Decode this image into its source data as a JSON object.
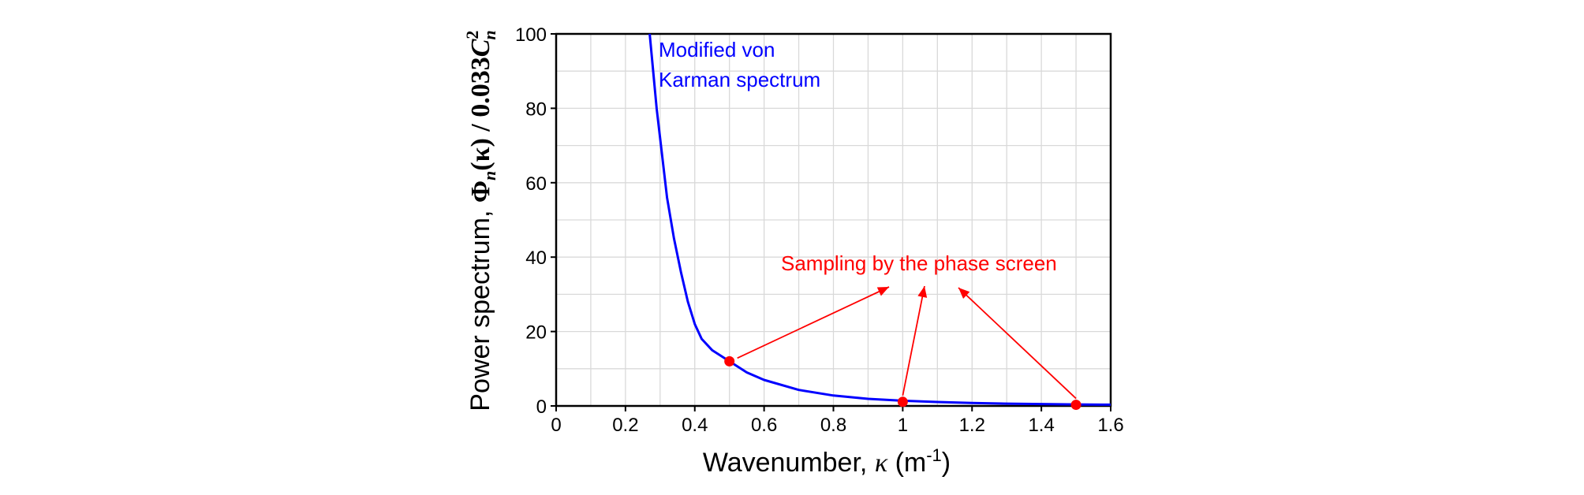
{
  "chart_data": {
    "type": "line",
    "xlabel": {
      "text": "Wavenumber, ",
      "symbol": "κ",
      "unit_open": " (m",
      "unit_sup": "-1",
      "unit_close": ")"
    },
    "ylabel": {
      "text": "Power spectrum, ",
      "symbol": "Φ",
      "sub1": "n",
      "mid": "(κ) / 0.033",
      "c": "C",
      "c_sup": "2",
      "c_sub": "n"
    },
    "xlim": [
      0,
      1.6
    ],
    "ylim": [
      0,
      100
    ],
    "x_ticks": [
      "0",
      "0.2",
      "0.4",
      "0.6",
      "0.8",
      "1",
      "1.2",
      "1.4",
      "1.6"
    ],
    "y_ticks": [
      "0",
      "20",
      "40",
      "60",
      "80",
      "100"
    ],
    "grid": true,
    "series": [
      {
        "label_lines": [
          "Modified von",
          "Karman spectrum"
        ],
        "color": "#0000ff",
        "x": [
          0.27,
          0.28,
          0.29,
          0.3,
          0.32,
          0.34,
          0.36,
          0.38,
          0.4,
          0.42,
          0.45,
          0.5,
          0.55,
          0.6,
          0.7,
          0.8,
          0.9,
          1.0,
          1.1,
          1.2,
          1.3,
          1.4,
          1.5,
          1.6
        ],
        "y": [
          100,
          90,
          80,
          72,
          56,
          45,
          36,
          28,
          22,
          18,
          15,
          12,
          9,
          7,
          4.3,
          2.8,
          1.9,
          1.4,
          1.05,
          0.8,
          0.62,
          0.5,
          0.4,
          0.33
        ]
      }
    ],
    "samples": {
      "color": "#ff0000",
      "x": [
        0.5,
        1.0,
        1.5
      ],
      "y": [
        12,
        1.1,
        0.3
      ]
    },
    "annotation": {
      "text": "Sampling by the phase screen",
      "color": "#ff0000"
    }
  }
}
